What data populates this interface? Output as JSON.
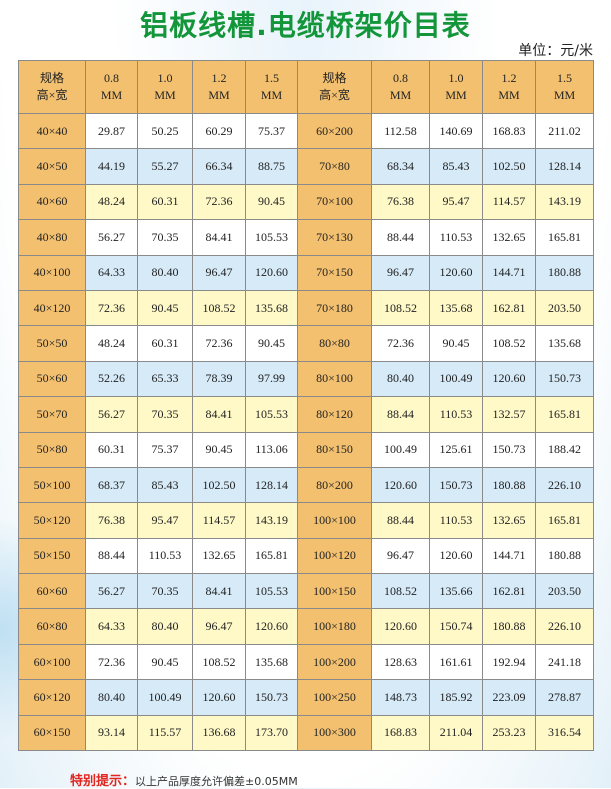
{
  "title": "铝板线槽.电缆桥架价目表",
  "unit": "单位：元/米",
  "colors": {
    "title": "#13963a",
    "header": "#f3c06f",
    "row_blue": "#d6eaf8",
    "row_yellow": "#fff9c8",
    "note": "#e0261f"
  },
  "headers": [
    "规格\n高×宽",
    "0.8\nMM",
    "1.0\nMM",
    "1.2\nMM",
    "1.5\nMM",
    "规格\n高×宽",
    "0.8\nMM",
    "1.0\nMM",
    "1.2\nMM",
    "1.5\nMM"
  ],
  "rows": [
    [
      "40×40",
      "29.87",
      "50.25",
      "60.29",
      "75.37",
      "60×200",
      "112.58",
      "140.69",
      "168.83",
      "211.02"
    ],
    [
      "40×50",
      "44.19",
      "55.27",
      "66.34",
      "88.75",
      "70×80",
      "68.34",
      "85.43",
      "102.50",
      "128.14"
    ],
    [
      "40×60",
      "48.24",
      "60.31",
      "72.36",
      "90.45",
      "70×100",
      "76.38",
      "95.47",
      "114.57",
      "143.19"
    ],
    [
      "40×80",
      "56.27",
      "70.35",
      "84.41",
      "105.53",
      "70×130",
      "88.44",
      "110.53",
      "132.65",
      "165.81"
    ],
    [
      "40×100",
      "64.33",
      "80.40",
      "96.47",
      "120.60",
      "70×150",
      "96.47",
      "120.60",
      "144.71",
      "180.88"
    ],
    [
      "40×120",
      "72.36",
      "90.45",
      "108.52",
      "135.68",
      "70×180",
      "108.52",
      "135.68",
      "162.81",
      "203.50"
    ],
    [
      "50×50",
      "48.24",
      "60.31",
      "72.36",
      "90.45",
      "80×80",
      "72.36",
      "90.45",
      "108.52",
      "135.68"
    ],
    [
      "50×60",
      "52.26",
      "65.33",
      "78.39",
      "97.99",
      "80×100",
      "80.40",
      "100.49",
      "120.60",
      "150.73"
    ],
    [
      "50×70",
      "56.27",
      "70.35",
      "84.41",
      "105.53",
      "80×120",
      "88.44",
      "110.53",
      "132.57",
      "165.81"
    ],
    [
      "50×80",
      "60.31",
      "75.37",
      "90.45",
      "113.06",
      "80×150",
      "100.49",
      "125.61",
      "150.73",
      "188.42"
    ],
    [
      "50×100",
      "68.37",
      "85.43",
      "102.50",
      "128.14",
      "80×200",
      "120.60",
      "150.73",
      "180.88",
      "226.10"
    ],
    [
      "50×120",
      "76.38",
      "95.47",
      "114.57",
      "143.19",
      "100×100",
      "88.44",
      "110.53",
      "132.65",
      "165.81"
    ],
    [
      "50×150",
      "88.44",
      "110.53",
      "132.65",
      "165.81",
      "100×120",
      "96.47",
      "120.60",
      "144.71",
      "180.88"
    ],
    [
      "60×60",
      "56.27",
      "70.35",
      "84.41",
      "105.53",
      "100×150",
      "108.52",
      "135.66",
      "162.81",
      "203.50"
    ],
    [
      "60×80",
      "64.33",
      "80.40",
      "96.47",
      "120.60",
      "100×180",
      "120.60",
      "150.74",
      "180.88",
      "226.10"
    ],
    [
      "60×100",
      "72.36",
      "90.45",
      "108.52",
      "135.68",
      "100×200",
      "128.63",
      "161.61",
      "192.94",
      "241.18"
    ],
    [
      "60×120",
      "80.40",
      "100.49",
      "120.60",
      "150.73",
      "100×250",
      "148.73",
      "185.92",
      "223.09",
      "278.87"
    ],
    [
      "60×150",
      "93.14",
      "115.57",
      "136.68",
      "173.70",
      "100×300",
      "168.83",
      "211.04",
      "253.23",
      "316.54"
    ]
  ],
  "note": {
    "label": "特别提示：",
    "text": "以上产品厚度允许偏差±0.05MM"
  }
}
